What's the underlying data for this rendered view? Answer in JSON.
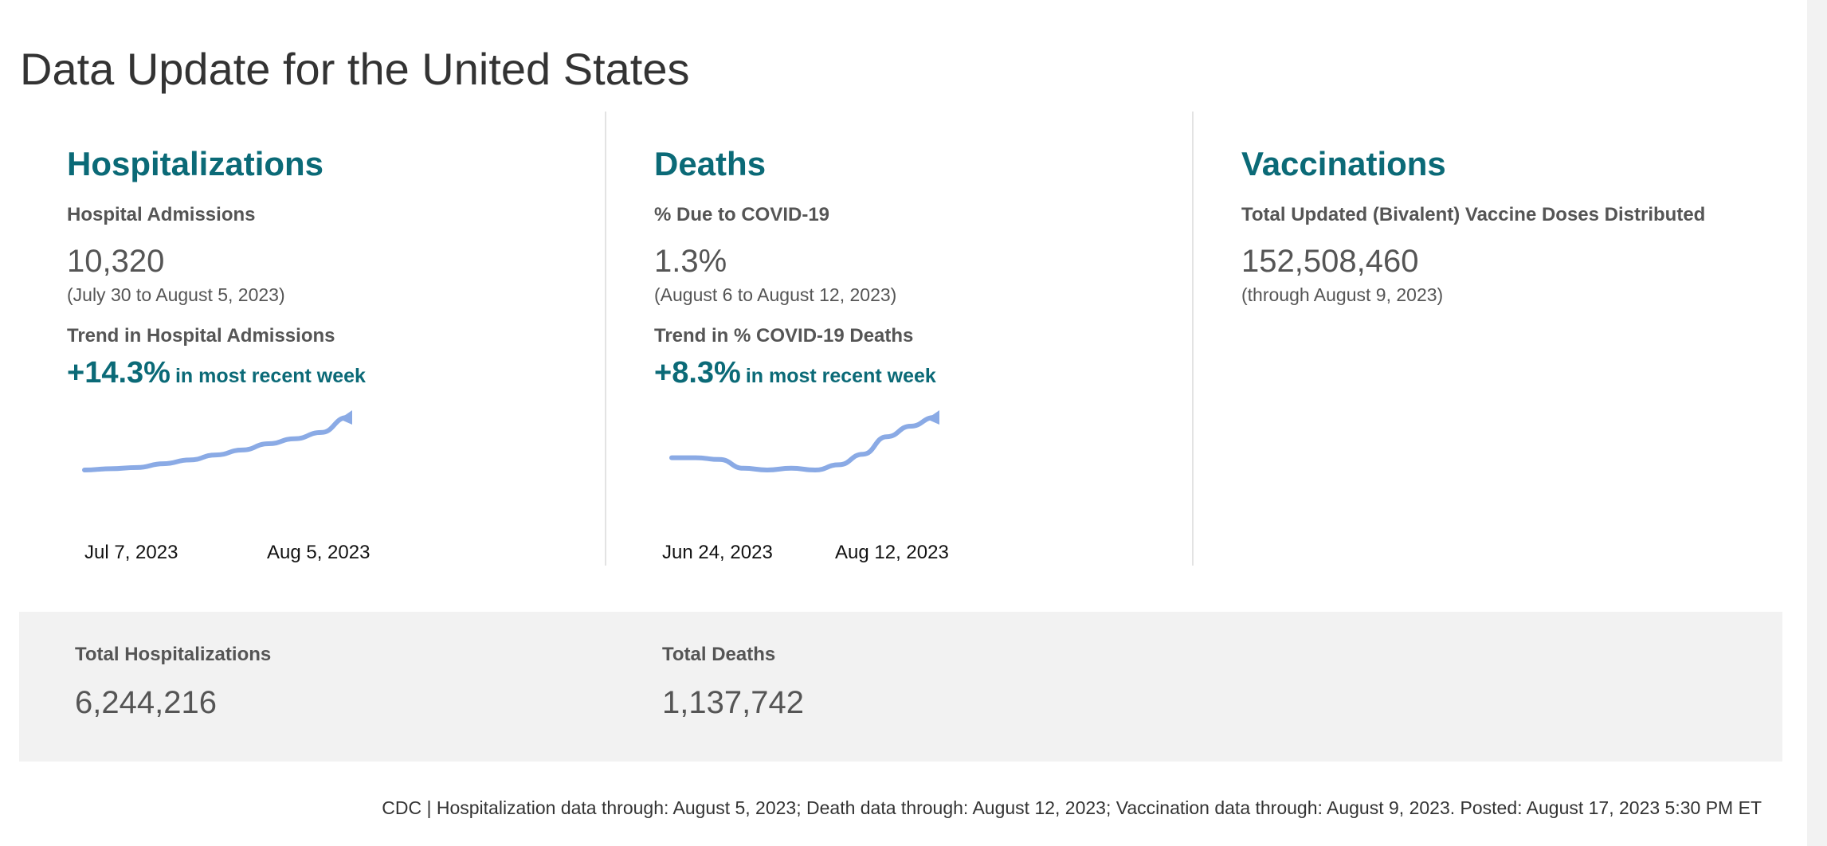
{
  "page": {
    "title": "Data Update for the United States"
  },
  "colors": {
    "accent": "#0b6a77",
    "sparkline": "#8aaae5",
    "totals_background": "#f2f2f2"
  },
  "hospitalizations": {
    "title": "Hospitalizations",
    "metric_label": "Hospital Admissions",
    "metric_value": "10,320",
    "metric_range": "(July 30 to August 5, 2023)",
    "trend_label": "Trend in Hospital Admissions",
    "trend_pct": "+14.3%",
    "trend_suffix": "in most recent week",
    "sparkline": {
      "start_date": "Jul 7, 2023",
      "end_date": "Aug 5, 2023",
      "values": [
        6.1,
        6.2,
        6.3,
        6.6,
        6.9,
        7.3,
        7.7,
        8.2,
        8.6,
        9.1,
        10.3
      ]
    }
  },
  "deaths": {
    "title": "Deaths",
    "metric_label": "% Due to COVID-19",
    "metric_value": "1.3%",
    "metric_range": "(August 6 to August 12, 2023)",
    "trend_label": "Trend in % COVID-19 Deaths",
    "trend_pct": "+8.3%",
    "trend_suffix": "in most recent week",
    "sparkline": {
      "start_date": "Jun 24, 2023",
      "end_date": "Aug 12, 2023",
      "values": [
        1.06,
        1.06,
        1.05,
        1.0,
        0.99,
        1.0,
        0.99,
        1.02,
        1.08,
        1.18,
        1.24,
        1.29
      ]
    }
  },
  "vaccinations": {
    "title": "Vaccinations",
    "metric_label": "Total Updated (Bivalent) Vaccine Doses Distributed",
    "metric_value": "152,508,460",
    "metric_range": "(through August 9, 2023)"
  },
  "totals": {
    "hospitalizations_label": "Total Hospitalizations",
    "hospitalizations_value": "6,244,216",
    "deaths_label": "Total Deaths",
    "deaths_value": "1,137,742"
  },
  "footnote": "CDC | Hospitalization data through: August 5, 2023; Death data through: August 12, 2023; Vaccination data through: August 9, 2023. Posted: August 17, 2023 5:30 PM ET"
}
